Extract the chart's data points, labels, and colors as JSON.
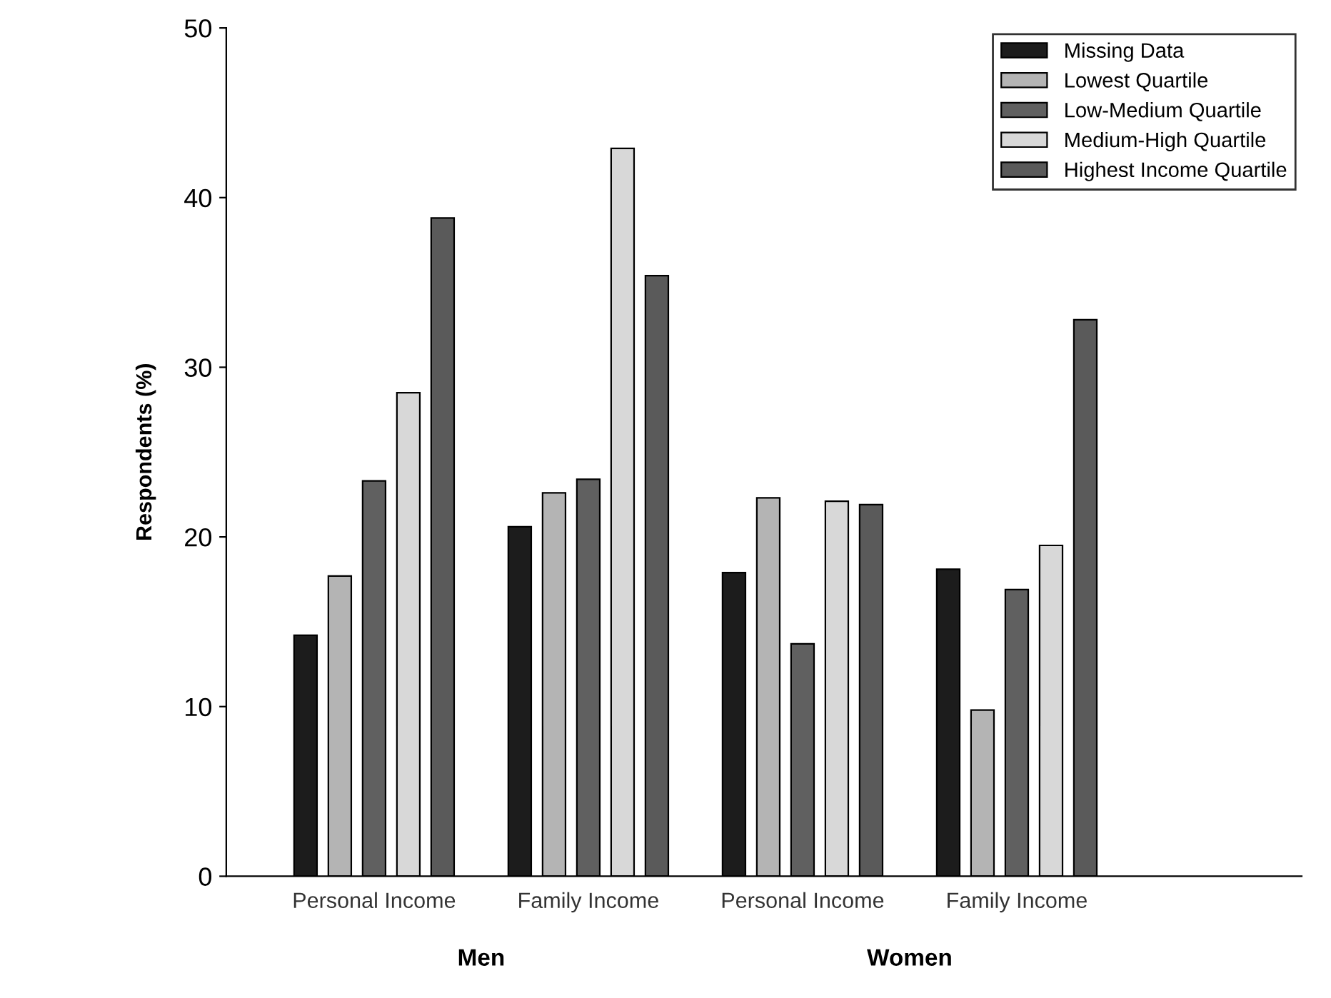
{
  "chart_data": {
    "type": "bar",
    "ylabel": "Respondents (%)",
    "categories": [
      "Personal Income",
      "Family Income",
      "Personal Income",
      "Family Income"
    ],
    "series": [
      {
        "name": "Missing Data",
        "color": "#1c1c1c",
        "values": [
          14.2,
          20.6,
          17.9,
          18.1
        ]
      },
      {
        "name": "Lowest Quartile",
        "color": "#b4b4b4",
        "values": [
          17.7,
          22.6,
          22.3,
          9.8
        ]
      },
      {
        "name": "Low-Medium Quartile",
        "color": "#606060",
        "values": [
          23.3,
          23.4,
          13.7,
          16.9
        ]
      },
      {
        "name": "Medium-High Quartile",
        "color": "#d8d8d8",
        "values": [
          28.5,
          42.9,
          22.1,
          19.5
        ]
      },
      {
        "name": "Highest Income Quartile",
        "color": "#5a5a5a",
        "values": [
          38.8,
          35.4,
          21.9,
          32.8
        ]
      }
    ],
    "annotations": [
      "Men",
      "Women"
    ],
    "ylim": [
      0,
      50
    ],
    "yticks": [
      0,
      10,
      20,
      30,
      40,
      50
    ],
    "grid": false,
    "legend": "top right"
  }
}
